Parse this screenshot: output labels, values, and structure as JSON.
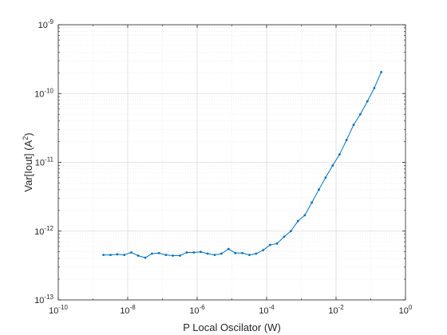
{
  "chart_data": {
    "type": "line",
    "xlabel": "P Local Oscilator (W)",
    "ylabel_base": "Var[Iout] (A",
    "ylabel_exp": "2",
    "ylabel_end": ")",
    "x_scale": "log",
    "y_scale": "log",
    "xlim": [
      1e-10,
      1
    ],
    "ylim": [
      1e-13,
      1e-09
    ],
    "grid": true,
    "minor_grid": true,
    "x_ticks": [
      {
        "base": "10",
        "exp": "-10"
      },
      {
        "base": "10",
        "exp": "-8"
      },
      {
        "base": "10",
        "exp": "-6"
      },
      {
        "base": "10",
        "exp": "-4"
      },
      {
        "base": "10",
        "exp": "-2"
      },
      {
        "base": "10",
        "exp": "0"
      }
    ],
    "y_ticks": [
      {
        "base": "10",
        "exp": "-13"
      },
      {
        "base": "10",
        "exp": "-12"
      },
      {
        "base": "10",
        "exp": "-11"
      },
      {
        "base": "10",
        "exp": "-10"
      },
      {
        "base": "10",
        "exp": "-9"
      }
    ],
    "series": [
      {
        "color": "#0072BD",
        "marker": "dot",
        "x": [
          2e-09,
          3.2e-09,
          5e-09,
          8e-09,
          1.26e-08,
          2e-08,
          3.2e-08,
          5e-08,
          8e-08,
          1.26e-07,
          2e-07,
          3.2e-07,
          5e-07,
          8e-07,
          1.26e-06,
          2e-06,
          3.2e-06,
          5e-06,
          8e-06,
          1.26e-05,
          2e-05,
          3.2e-05,
          5e-05,
          8e-05,
          0.000126,
          0.0002,
          0.00032,
          0.0005,
          0.0008,
          0.00126,
          0.002,
          0.0032,
          0.005,
          0.008,
          0.0126,
          0.02,
          0.032,
          0.05,
          0.08,
          0.126,
          0.2
        ],
        "y": [
          4.5e-13,
          4.5e-13,
          4.6e-13,
          4.5e-13,
          4.9e-13,
          4.4e-13,
          4.1e-13,
          4.7e-13,
          4.8e-13,
          4.5e-13,
          4.4e-13,
          4.4e-13,
          4.9e-13,
          4.9e-13,
          5e-13,
          4.7e-13,
          4.5e-13,
          4.7e-13,
          5.5e-13,
          4.8e-13,
          4.8e-13,
          4.5e-13,
          4.7e-13,
          5.3e-13,
          6.3e-13,
          6.6e-13,
          8.3e-13,
          1e-12,
          1.4e-12,
          1.7e-12,
          2.6e-12,
          4e-12,
          6e-12,
          9e-12,
          1.3e-11,
          2.1e-11,
          3.5e-11,
          5e-11,
          7.7e-11,
          1.2e-10,
          2.05e-10
        ]
      }
    ]
  }
}
